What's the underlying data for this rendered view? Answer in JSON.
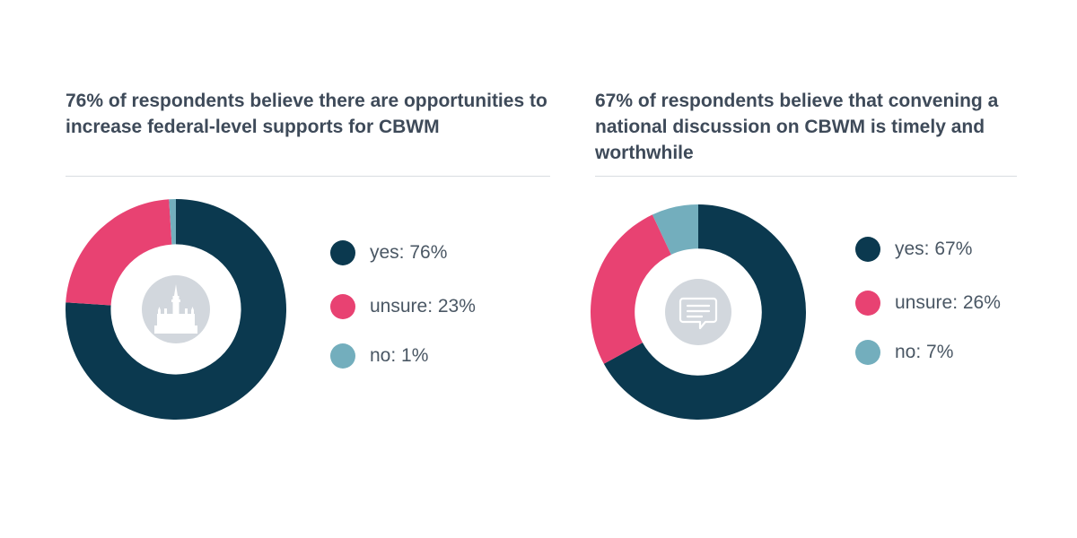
{
  "colors": {
    "yes": "#0b394f",
    "unsure": "#e84272",
    "no": "#73aebd",
    "icon_bg": "#d2d7dd",
    "icon_fg": "#ffffff"
  },
  "chart_data": [
    {
      "type": "pie",
      "variant": "donut",
      "title": "76% of respondents believe there are opportunities to increase federal-level supports for CBWM",
      "center_icon": "parliament-building-icon",
      "categories": [
        "yes",
        "unsure",
        "no"
      ],
      "values": [
        76,
        23,
        1
      ],
      "legend": [
        "yes: 76%",
        "unsure: 23%",
        "no: 1%"
      ],
      "legend_position": "right"
    },
    {
      "type": "pie",
      "variant": "donut",
      "title": "67% of respondents believe that convening a national discussion on CBWM is timely and worthwhile",
      "center_icon": "speech-bubble-icon",
      "categories": [
        "yes",
        "unsure",
        "no"
      ],
      "values": [
        67,
        26,
        7
      ],
      "legend": [
        "yes: 67%",
        "unsure: 26%",
        "no: 7%"
      ],
      "legend_position": "right"
    }
  ]
}
